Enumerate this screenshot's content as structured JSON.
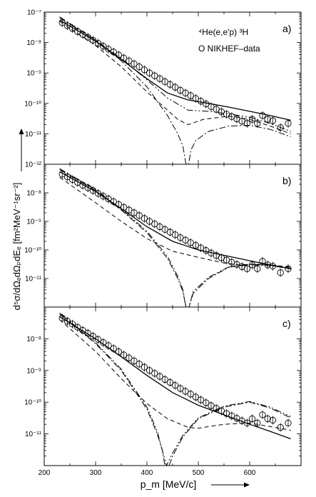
{
  "chart_data": {
    "type": "scatter",
    "xlabel": "p_m [MeV/c]",
    "ylabel": "d⁵σ/dΩₑdΩₚdEₑ [fm²MeV⁻¹sr⁻²]",
    "xlim": [
      200,
      700
    ],
    "ylim": [
      1e-12,
      1e-07
    ],
    "yscale": "log",
    "x_ticks": [
      200,
      300,
      400,
      500,
      600
    ],
    "x_tick_labels": [
      "200",
      "300",
      "400",
      "500",
      "600"
    ],
    "y_ticks": [
      1e-12,
      1e-11,
      1e-10,
      1e-09,
      1e-08,
      1e-07
    ],
    "y_tick_labels_full": [
      "10⁻¹²",
      "10⁻¹¹",
      "10⁻¹⁰",
      "10⁻⁹",
      "10⁻⁸",
      "10⁻⁷"
    ],
    "y_tick_labels_lower": [
      "10⁻¹¹",
      "10⁻¹⁰",
      "10⁻⁹",
      "10⁻⁸"
    ],
    "data_x": [
      235,
      245,
      255,
      265,
      275,
      285,
      295,
      305,
      315,
      325,
      335,
      345,
      355,
      365,
      375,
      385,
      395,
      405,
      415,
      425,
      435,
      445,
      455,
      465,
      475,
      485,
      495,
      505,
      515,
      525,
      535,
      545,
      555,
      565,
      575,
      585,
      595,
      605,
      615,
      625,
      635,
      645,
      660,
      675
    ],
    "data_y": [
      4.5e-08,
      3.6e-08,
      2.9e-08,
      2.3e-08,
      1.85e-08,
      1.5e-08,
      1.2e-08,
      9.5e-09,
      7.6e-09,
      6.1e-09,
      4.9e-09,
      3.9e-09,
      3.1e-09,
      2.5e-09,
      2e-09,
      1.6e-09,
      1.27e-09,
      1e-09,
      8.1e-10,
      6.5e-10,
      5.2e-10,
      4.2e-10,
      3.4e-10,
      2.7e-10,
      2.2e-10,
      1.8e-10,
      1.45e-10,
      1.18e-10,
      9.6e-11,
      7.8e-11,
      6.4e-11,
      5.3e-11,
      4.4e-11,
      3.7e-11,
      3.1e-11,
      2.6e-11,
      2.2e-11,
      3e-11,
      2.2e-11,
      4e-11,
      3e-11,
      2.7e-11,
      1.6e-11,
      2.2e-11
    ],
    "panels": [
      {
        "id": "a",
        "label": "a)",
        "annotation": [
          "⁴He(e,e'p) ³H",
          "O NIKHEF–data"
        ],
        "series": [
          {
            "style": "solid",
            "x": [
              230,
              300,
              350,
              400,
              440,
              480,
              520,
              560,
              600,
              640,
              680
            ],
            "y": [
              5.5e-08,
              1.1e-08,
              2.8e-09,
              6.5e-10,
              2.2e-10,
              1.3e-10,
              1e-10,
              7.5e-11,
              5.5e-11,
              4e-11,
              2.8e-11
            ]
          },
          {
            "style": "dashed",
            "x": [
              230,
              300,
              350,
              400,
              440,
              460,
              480,
              510,
              560,
              600,
              640,
              680
            ],
            "y": [
              5e-08,
              8e-09,
              1.6e-09,
              2.4e-10,
              6e-11,
              3e-11,
              2e-11,
              3e-11,
              3.8e-11,
              3e-11,
              1.8e-11,
              1e-11
            ]
          },
          {
            "style": "dashdot",
            "x": [
              230,
              300,
              350,
              400,
              440,
              460,
              470,
              476,
              481,
              486,
              495,
              520,
              560,
              600,
              640,
              680
            ],
            "y": [
              7e-08,
              1.2e-08,
              2.5e-09,
              3.5e-10,
              4e-11,
              1e-11,
              4e-12,
              1e-12,
              1e-12,
              3e-12,
              6e-12,
              1.2e-11,
              1.8e-11,
              1.9e-11,
              1.4e-11,
              8e-12
            ]
          },
          {
            "style": "dashdotdot",
            "x": [
              230,
              300,
              350,
              400,
              440,
              480,
              520,
              560,
              600,
              640,
              680
            ],
            "y": [
              6.5e-08,
              1.2e-08,
              3e-09,
              6e-10,
              1.5e-10,
              6e-11,
              5.5e-11,
              4.5e-11,
              3.5e-11,
              2.2e-11,
              1.2e-11
            ]
          }
        ]
      },
      {
        "id": "b",
        "label": "b)",
        "annotation": [],
        "series": [
          {
            "style": "solid",
            "x": [
              230,
              300,
              350,
              400,
              450,
              500,
              550,
              600,
              640,
              680
            ],
            "y": [
              5.5e-08,
              1.1e-08,
              2.8e-09,
              6.5e-10,
              2e-10,
              1e-10,
              6.5e-11,
              4.2e-11,
              3e-11,
              2.2e-11
            ]
          },
          {
            "style": "dashed",
            "x": [
              230,
              300,
              350,
              400,
              450,
              500,
              550,
              580,
              610,
              640,
              680
            ],
            "y": [
              3.5e-08,
              4.5e-09,
              1e-09,
              2.5e-10,
              9e-11,
              5.5e-11,
              3.5e-11,
              3e-11,
              3.2e-11,
              3e-11,
              2.5e-11
            ]
          },
          {
            "style": "dashdot",
            "x": [
              230,
              300,
              350,
              400,
              440,
              460,
              470,
              476,
              482,
              490,
              520,
              560,
              600,
              640,
              680
            ],
            "y": [
              6.5e-08,
              1.2e-08,
              2.5e-09,
              4e-10,
              5e-11,
              1e-11,
              3.5e-12,
              1e-12,
              1e-12,
              3e-12,
              1e-11,
              2.5e-11,
              3e-11,
              2.8e-11,
              2.2e-11
            ]
          },
          {
            "style": "dashdotdot",
            "x": [
              230,
              300,
              350,
              400,
              440,
              460,
              470,
              476,
              482,
              490,
              520,
              560,
              600,
              640,
              680
            ],
            "y": [
              7e-08,
              1.3e-08,
              2.7e-09,
              4.5e-10,
              6e-11,
              1.2e-11,
              4e-12,
              1e-12,
              1e-12,
              3.5e-12,
              1.1e-11,
              2.6e-11,
              3.1e-11,
              2.9e-11,
              2.3e-11
            ]
          }
        ]
      },
      {
        "id": "c",
        "label": "c)",
        "annotation": [],
        "series": [
          {
            "style": "solid",
            "x": [
              230,
              300,
              350,
              400,
              450,
              500,
              550,
              600,
              640,
              680
            ],
            "y": [
              5e-08,
              1e-08,
              2.7e-09,
              7e-10,
              2e-10,
              8e-11,
              4e-11,
              2e-11,
              1.2e-11,
              7e-12
            ]
          },
          {
            "style": "dashed",
            "x": [
              230,
              300,
              350,
              400,
              440,
              480,
              500,
              520,
              550,
              600,
              640,
              680
            ],
            "y": [
              4e-08,
              4e-09,
              5.5e-10,
              9e-11,
              3e-11,
              1.6e-11,
              1.5e-11,
              1.7e-11,
              2e-11,
              2.2e-11,
              1.7e-11,
              1.3e-11
            ]
          },
          {
            "style": "dashdot",
            "x": [
              230,
              300,
              350,
              400,
              420,
              430,
              435,
              438,
              443,
              450,
              470,
              500,
              550,
              600,
              640,
              680
            ],
            "y": [
              6e-08,
              7e-09,
              1e-09,
              6e-11,
              1e-11,
              3e-12,
              1e-12,
              1e-12,
              1e-12,
              2e-12,
              8e-12,
              3e-11,
              7e-11,
              1e-10,
              6.5e-11,
              3.2e-11
            ]
          },
          {
            "style": "dashdotdot",
            "x": [
              230,
              300,
              350,
              400,
              420,
              438,
              450,
              470,
              500,
              550,
              600,
              640,
              680
            ],
            "y": [
              6.5e-08,
              7.5e-09,
              1.1e-09,
              7e-11,
              1.2e-11,
              1e-12,
              2.5e-12,
              9e-12,
              3.2e-11,
              7.5e-11,
              1.05e-10,
              7e-11,
              3.5e-11
            ]
          }
        ]
      }
    ]
  }
}
